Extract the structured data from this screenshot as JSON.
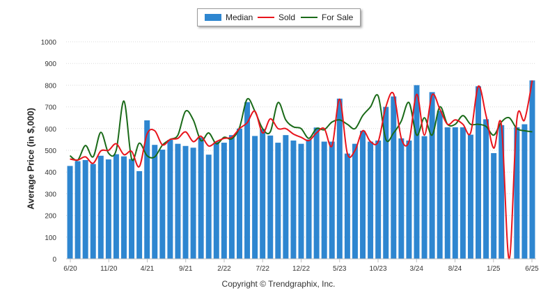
{
  "chart_data": {
    "type": "bar",
    "ylabel": "Average Price (in $,000)",
    "ylim": [
      0,
      1000
    ],
    "yticks": [
      "0",
      "100",
      "200",
      "300",
      "400",
      "500",
      "600",
      "700",
      "800",
      "900",
      "1000"
    ],
    "grid": true,
    "legend_position": "top-center",
    "x_tick_labels": [
      "6/20",
      "11/20",
      "4/21",
      "9/21",
      "2/22",
      "7/22",
      "12/22",
      "5/23",
      "10/23",
      "3/24",
      "8/24",
      "1/25",
      "6/25"
    ],
    "colors": {
      "median": "#2e86d0",
      "sold": "#e8141c",
      "for_sale": "#1a6a18"
    },
    "series": [
      {
        "name": "Median",
        "kind": "bar",
        "values": [
          428,
          450,
          455,
          437,
          475,
          458,
          482,
          472,
          460,
          404,
          638,
          525,
          503,
          548,
          530,
          520,
          512,
          560,
          480,
          540,
          535,
          570,
          600,
          722,
          566,
          598,
          568,
          535,
          570,
          545,
          530,
          550,
          605,
          540,
          540,
          738,
          485,
          530,
          590,
          540,
          545,
          700,
          748,
          555,
          545,
          800,
          565,
          768,
          682,
          606,
          606,
          606,
          572,
          795,
          643,
          487,
          616,
          0,
          606,
          620,
          822
        ]
      },
      {
        "name": "Sold",
        "kind": "line",
        "values": [
          460,
          455,
          470,
          440,
          497,
          500,
          530,
          480,
          495,
          425,
          575,
          590,
          525,
          550,
          555,
          585,
          540,
          565,
          520,
          540,
          555,
          560,
          600,
          627,
          680,
          580,
          645,
          600,
          600,
          575,
          560,
          545,
          580,
          600,
          520,
          735,
          485,
          500,
          590,
          540,
          540,
          700,
          760,
          555,
          540,
          758,
          570,
          755,
          690,
          620,
          640,
          620,
          580,
          795,
          660,
          510,
          616,
          0,
          640,
          640,
          822
        ]
      },
      {
        "name": "For Sale",
        "kind": "line",
        "values": [
          475,
          455,
          522,
          470,
          583,
          487,
          500,
          727,
          460,
          533,
          475,
          470,
          524,
          550,
          570,
          680,
          640,
          545,
          580,
          530,
          560,
          553,
          605,
          736,
          680,
          600,
          585,
          720,
          640,
          608,
          600,
          555,
          600,
          595,
          630,
          640,
          620,
          600,
          660,
          700,
          750,
          550,
          580,
          635,
          720,
          570,
          650,
          570,
          700,
          620,
          620,
          660,
          620,
          620,
          610,
          570,
          630,
          650,
          600,
          590,
          585
        ]
      }
    ]
  },
  "legend": {
    "median": "Median",
    "sold": "Sold",
    "for_sale": "For Sale"
  },
  "copyright": "Copyright © Trendgraphix, Inc."
}
